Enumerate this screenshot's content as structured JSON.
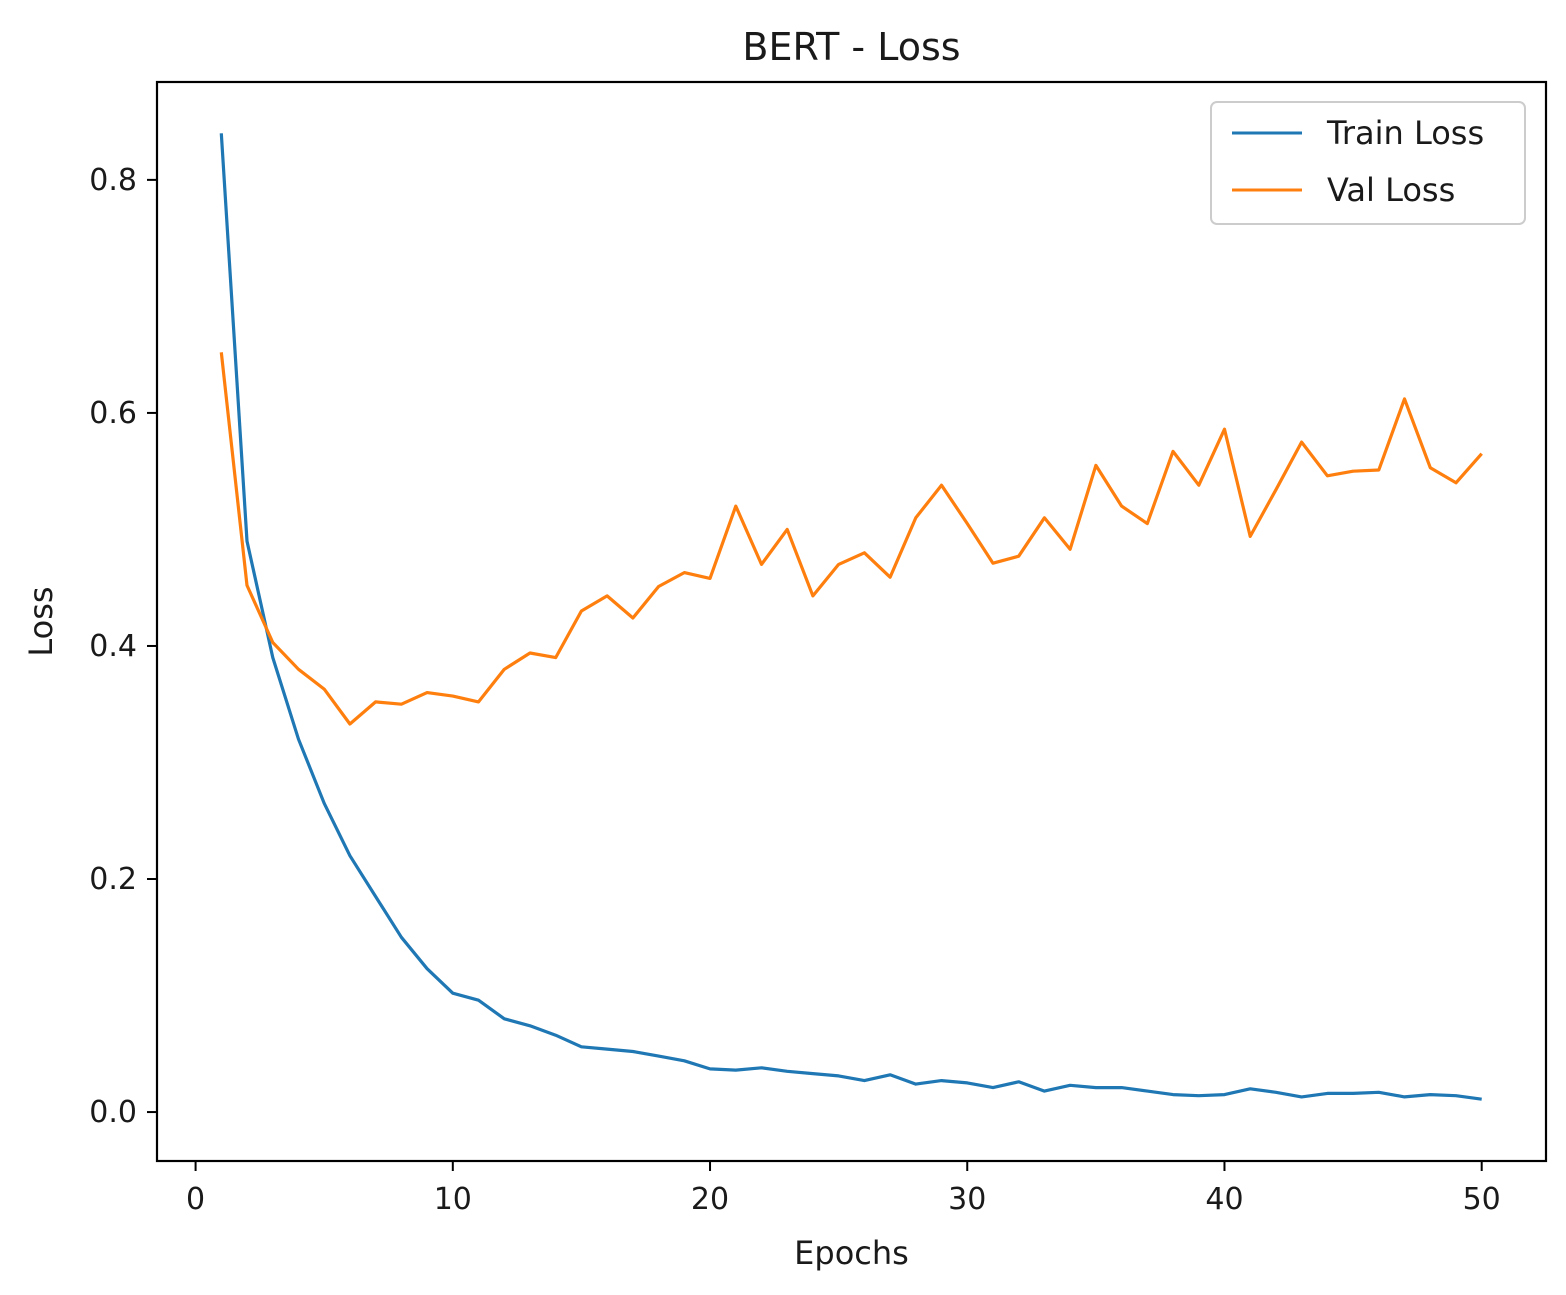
{
  "chart_data": {
    "type": "line",
    "title": "BERT - Loss",
    "xlabel": "Epochs",
    "ylabel": "Loss",
    "xlim": [
      -1.5,
      52.5
    ],
    "ylim": [
      -0.042,
      0.884
    ],
    "xticks": [
      0,
      10,
      20,
      30,
      40,
      50
    ],
    "xtick_labels": [
      "0",
      "10",
      "20",
      "30",
      "40",
      "50"
    ],
    "yticks": [
      0.0,
      0.2,
      0.4,
      0.6,
      0.8
    ],
    "ytick_labels": [
      "0.0",
      "0.2",
      "0.4",
      "0.6",
      "0.8"
    ],
    "grid": false,
    "legend_position": "top-right",
    "x": [
      1,
      2,
      3,
      4,
      5,
      6,
      7,
      8,
      9,
      10,
      11,
      12,
      13,
      14,
      15,
      16,
      17,
      18,
      19,
      20,
      21,
      22,
      23,
      24,
      25,
      26,
      27,
      28,
      29,
      30,
      31,
      32,
      33,
      34,
      35,
      36,
      37,
      38,
      39,
      40,
      41,
      42,
      43,
      44,
      45,
      46,
      47,
      48,
      49,
      50
    ],
    "series": [
      {
        "name": "Train Loss",
        "color": "#1f77b4",
        "values": [
          0.84,
          0.49,
          0.39,
          0.32,
          0.265,
          0.22,
          0.185,
          0.15,
          0.123,
          0.102,
          0.096,
          0.08,
          0.074,
          0.066,
          0.056,
          0.054,
          0.052,
          0.048,
          0.044,
          0.037,
          0.036,
          0.038,
          0.035,
          0.033,
          0.031,
          0.027,
          0.032,
          0.024,
          0.027,
          0.025,
          0.021,
          0.026,
          0.018,
          0.023,
          0.021,
          0.021,
          0.018,
          0.015,
          0.014,
          0.015,
          0.02,
          0.017,
          0.013,
          0.016,
          0.016,
          0.017,
          0.013,
          0.015,
          0.014,
          0.011
        ]
      },
      {
        "name": "Val Loss",
        "color": "#ff7f0e",
        "values": [
          0.652,
          0.452,
          0.403,
          0.38,
          0.363,
          0.333,
          0.352,
          0.35,
          0.36,
          0.357,
          0.352,
          0.38,
          0.394,
          0.39,
          0.43,
          0.443,
          0.424,
          0.451,
          0.463,
          0.458,
          0.52,
          0.47,
          0.5,
          0.443,
          0.47,
          0.48,
          0.459,
          0.51,
          0.538,
          0.505,
          0.471,
          0.477,
          0.51,
          0.483,
          0.555,
          0.52,
          0.505,
          0.567,
          0.538,
          0.586,
          0.494,
          0.534,
          0.575,
          0.546,
          0.55,
          0.551,
          0.612,
          0.553,
          0.54,
          0.565
        ]
      }
    ]
  }
}
